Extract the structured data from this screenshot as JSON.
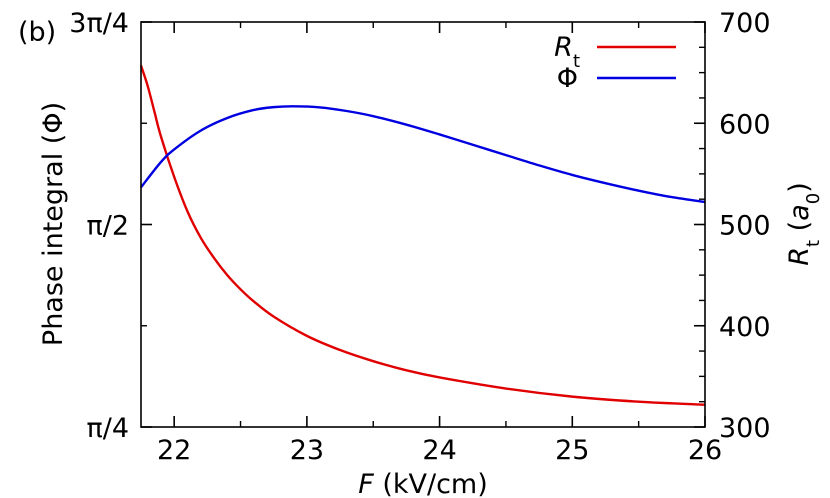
{
  "chart_data": {
    "type": "line",
    "panel_label": "(b)",
    "xlabel": {
      "italic": "F",
      "rest": " (kV/cm)"
    },
    "ylabel_left": "Phase integral (Φ)",
    "ylabel_right": {
      "italic": "R",
      "sub": "t",
      "rest1": " (",
      "italic2": "a",
      "sub2": "0",
      "rest2": ")"
    },
    "xlim": [
      21.75,
      26
    ],
    "ylim_left": [
      0.7853981634,
      2.3561944902
    ],
    "ylim_right": [
      300,
      700
    ],
    "x_ticks": [
      22,
      23,
      24,
      25,
      26
    ],
    "x_tick_labels": [
      "22",
      "23",
      "24",
      "25",
      "26"
    ],
    "y_left_ticks": [
      0.7853981634,
      1.5707963268,
      2.3561944902
    ],
    "y_left_tick_labels": [
      "π/4",
      "π/2",
      "3π/4"
    ],
    "y_right_ticks": [
      300,
      400,
      500,
      600,
      700
    ],
    "y_right_tick_labels": [
      "300",
      "400",
      "500",
      "600",
      "700"
    ],
    "legend_position": "top-right",
    "series": [
      {
        "name": "Rt",
        "legend": {
          "italic": "R",
          "sub": "t"
        },
        "axis": "right",
        "color": "#e00000",
        "x": [
          21.75,
          21.8,
          21.85,
          21.9,
          22.0,
          22.1,
          22.2,
          22.3,
          22.4,
          22.5,
          22.6,
          22.75,
          23.0,
          23.25,
          23.5,
          23.75,
          24.0,
          24.5,
          25.0,
          25.5,
          26.0
        ],
        "y": [
          657,
          637,
          612,
          587,
          547,
          513,
          487,
          467,
          450,
          436,
          424,
          409,
          390,
          376,
          365,
          356,
          349,
          338,
          330,
          325,
          322
        ]
      },
      {
        "name": "Φ",
        "legend": {
          "text": "Φ"
        },
        "axis": "left",
        "color": "#0000e0",
        "x": [
          21.75,
          21.9,
          22.0,
          22.2,
          22.4,
          22.6,
          22.75,
          22.9,
          23.1,
          23.3,
          23.5,
          23.75,
          24.0,
          24.25,
          24.5,
          24.75,
          25.0,
          25.25,
          25.5,
          25.75,
          26.0
        ],
        "y": [
          1.715,
          1.813,
          1.862,
          1.935,
          1.984,
          2.015,
          2.026,
          2.029,
          2.025,
          2.011,
          1.991,
          1.958,
          1.92,
          1.88,
          1.84,
          1.8,
          1.763,
          1.731,
          1.702,
          1.677,
          1.658
        ]
      }
    ]
  }
}
